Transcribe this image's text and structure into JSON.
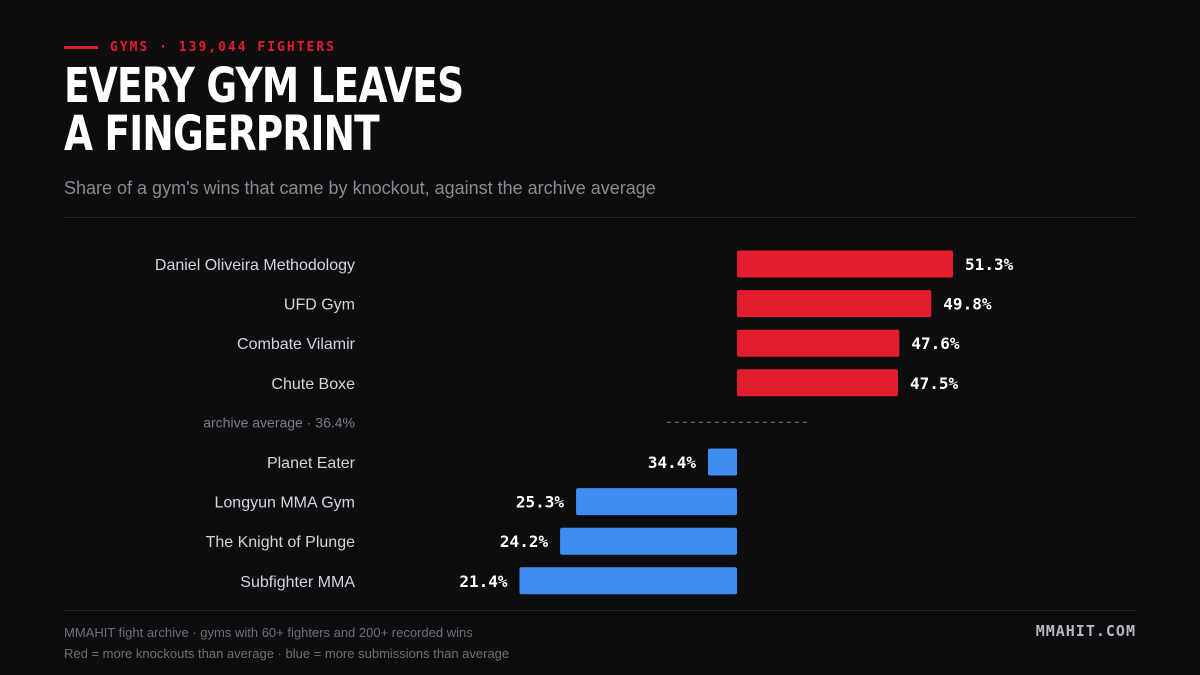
{
  "header": {
    "eyebrow": "GYMS · 139,044 FIGHTERS",
    "title_line1": "EVERY GYM LEAVES",
    "title_line2": "A FINGERPRINT",
    "subtitle": "Share of a gym's wins that came by knockout, against the archive average"
  },
  "footer": {
    "source": "MMAHIT fight archive · gyms with 60+ fighters and 200+ recorded wins",
    "legend_note": "Red = more knockouts than average · blue = more submissions than average",
    "brand": "MMAHIT.COM"
  },
  "colors": {
    "above": "#e11d2e",
    "below": "#3d8ef0",
    "average_line": "#5a5a60"
  },
  "chart_data": {
    "type": "bar",
    "orientation": "horizontal",
    "title": "",
    "xlabel": "",
    "ylabel": "",
    "unit": "%",
    "baseline": 36.4,
    "average_label": "archive average · 36.4%",
    "categories": [
      "Daniel Oliveira Methodology",
      "UFD Gym",
      "Combate Vilamir",
      "Chute Boxe",
      "Planet Eater",
      "Longyun MMA Gym",
      "The Knight of Plunge",
      "Subfighter MMA"
    ],
    "values": [
      51.3,
      49.8,
      47.6,
      47.5,
      34.4,
      25.3,
      24.2,
      21.4
    ],
    "value_labels": [
      "51.3%",
      "49.8%",
      "47.6%",
      "47.5%",
      "34.4%",
      "25.3%",
      "24.2%",
      "21.4%"
    ],
    "grid": false,
    "legend": "none"
  }
}
